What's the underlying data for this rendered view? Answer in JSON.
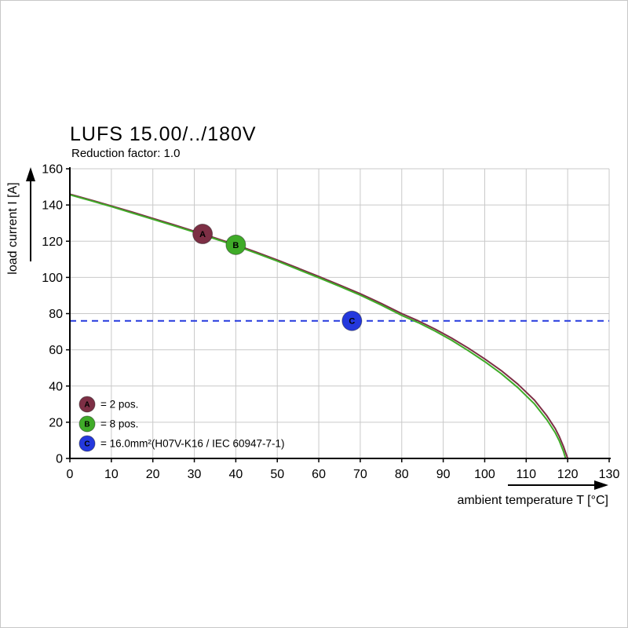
{
  "chart_data": {
    "type": "line",
    "title": "LUFS 15.00/../180V",
    "subtitle": "Reduction factor: 1.0",
    "xlabel": "ambient temperature T [°C]",
    "ylabel": "load current I [A]",
    "xlim": [
      0,
      130
    ],
    "ylim": [
      0,
      160
    ],
    "x_ticks": [
      0,
      10,
      20,
      30,
      40,
      50,
      60,
      70,
      80,
      90,
      100,
      110,
      120,
      130
    ],
    "y_ticks": [
      0,
      20,
      40,
      60,
      80,
      100,
      120,
      140,
      160
    ],
    "grid": true,
    "grid_color": "#c9c9c9",
    "series": [
      {
        "name": "2 pos.",
        "color": "#7d2f45",
        "points": [
          [
            0,
            146
          ],
          [
            5,
            142.8
          ],
          [
            10,
            139.5
          ],
          [
            15,
            136.1
          ],
          [
            20,
            132.6
          ],
          [
            25,
            129.1
          ],
          [
            30,
            125.5
          ],
          [
            32,
            124
          ],
          [
            35,
            121.8
          ],
          [
            40,
            118
          ],
          [
            45,
            113.9
          ],
          [
            50,
            109.6
          ],
          [
            55,
            105.1
          ],
          [
            60,
            100.5
          ],
          [
            65,
            95.8
          ],
          [
            70,
            91
          ],
          [
            75,
            85.7
          ],
          [
            80,
            80
          ],
          [
            84,
            76
          ],
          [
            88,
            71.5
          ],
          [
            92,
            66.5
          ],
          [
            96,
            61
          ],
          [
            100,
            55
          ],
          [
            104,
            48.5
          ],
          [
            108,
            41
          ],
          [
            112,
            32.2
          ],
          [
            115,
            23.5
          ],
          [
            117,
            16.5
          ],
          [
            118,
            12
          ],
          [
            119,
            6.5
          ],
          [
            120,
            0
          ]
        ]
      },
      {
        "name": "8 pos.",
        "color": "#3fab28",
        "points": [
          [
            0,
            145.6
          ],
          [
            5,
            142.4
          ],
          [
            10,
            139.1
          ],
          [
            15,
            135.6
          ],
          [
            20,
            132.1
          ],
          [
            25,
            128.6
          ],
          [
            30,
            125
          ],
          [
            32,
            123.5
          ],
          [
            35,
            121.3
          ],
          [
            40,
            117.5
          ],
          [
            45,
            113.3
          ],
          [
            50,
            109
          ],
          [
            55,
            104.4
          ],
          [
            60,
            99.8
          ],
          [
            65,
            95.1
          ],
          [
            70,
            90.2
          ],
          [
            75,
            84.8
          ],
          [
            80,
            79
          ],
          [
            84,
            75
          ],
          [
            88,
            70.4
          ],
          [
            92,
            65.3
          ],
          [
            96,
            59.6
          ],
          [
            100,
            53.5
          ],
          [
            104,
            46.8
          ],
          [
            108,
            39.1
          ],
          [
            112,
            30.1
          ],
          [
            115,
            21.3
          ],
          [
            117,
            14.2
          ],
          [
            118,
            9.6
          ],
          [
            119,
            3.8
          ],
          [
            119.5,
            0
          ]
        ]
      }
    ],
    "reference_line": {
      "y": 76,
      "color": "#2438dd",
      "style": "dashed"
    },
    "markers": [
      {
        "label": "A",
        "x": 32,
        "y": 124,
        "color": "#7d2f45"
      },
      {
        "label": "B",
        "x": 40,
        "y": 118,
        "color": "#3fab28"
      },
      {
        "label": "C",
        "x": 68,
        "y": 76,
        "color": "#2438dd"
      }
    ],
    "legend": [
      {
        "label": "A",
        "color": "#7d2f45",
        "text": "= 2 pos."
      },
      {
        "label": "B",
        "color": "#3fab28",
        "text": "= 8 pos."
      },
      {
        "label": "C",
        "color": "#2438dd",
        "text": "= 16.0mm²(H07V-K16 / IEC 60947-7-1)"
      }
    ],
    "legend_position": "bottom-left",
    "axis_color": "#000000"
  }
}
